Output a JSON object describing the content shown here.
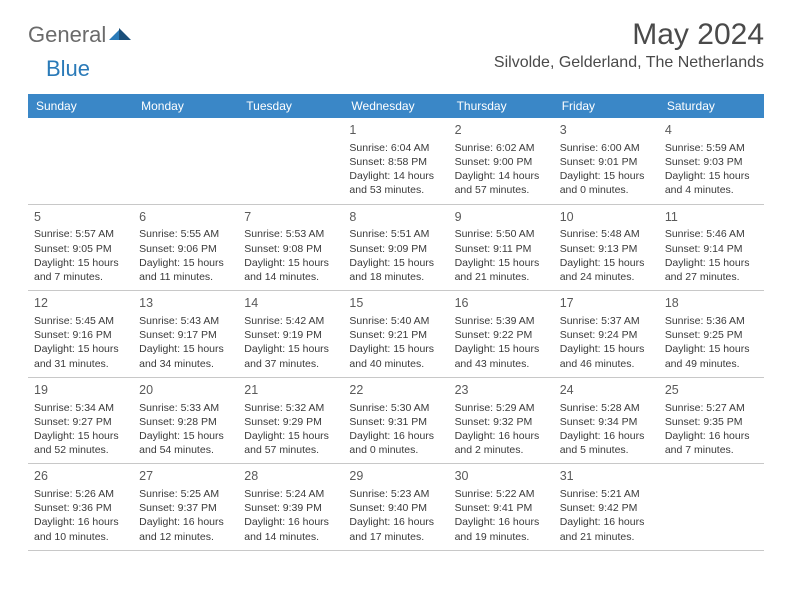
{
  "brand": {
    "part1": "General",
    "part2": "Blue"
  },
  "title": "May 2024",
  "location": "Silvolde, Gelderland, The Netherlands",
  "colors": {
    "header_bg": "#3a87c7",
    "header_text": "#ffffff",
    "logo_gray": "#6b6b6b",
    "logo_blue": "#2a7ab8",
    "title_text": "#4a4a4a",
    "cell_text": "#3a3a3a",
    "border": "#c8c8c8"
  },
  "day_names": [
    "Sunday",
    "Monday",
    "Tuesday",
    "Wednesday",
    "Thursday",
    "Friday",
    "Saturday"
  ],
  "weeks": [
    [
      null,
      null,
      null,
      {
        "n": "1",
        "sr": "Sunrise: 6:04 AM",
        "ss": "Sunset: 8:58 PM",
        "d1": "Daylight: 14 hours",
        "d2": "and 53 minutes."
      },
      {
        "n": "2",
        "sr": "Sunrise: 6:02 AM",
        "ss": "Sunset: 9:00 PM",
        "d1": "Daylight: 14 hours",
        "d2": "and 57 minutes."
      },
      {
        "n": "3",
        "sr": "Sunrise: 6:00 AM",
        "ss": "Sunset: 9:01 PM",
        "d1": "Daylight: 15 hours",
        "d2": "and 0 minutes."
      },
      {
        "n": "4",
        "sr": "Sunrise: 5:59 AM",
        "ss": "Sunset: 9:03 PM",
        "d1": "Daylight: 15 hours",
        "d2": "and 4 minutes."
      }
    ],
    [
      {
        "n": "5",
        "sr": "Sunrise: 5:57 AM",
        "ss": "Sunset: 9:05 PM",
        "d1": "Daylight: 15 hours",
        "d2": "and 7 minutes."
      },
      {
        "n": "6",
        "sr": "Sunrise: 5:55 AM",
        "ss": "Sunset: 9:06 PM",
        "d1": "Daylight: 15 hours",
        "d2": "and 11 minutes."
      },
      {
        "n": "7",
        "sr": "Sunrise: 5:53 AM",
        "ss": "Sunset: 9:08 PM",
        "d1": "Daylight: 15 hours",
        "d2": "and 14 minutes."
      },
      {
        "n": "8",
        "sr": "Sunrise: 5:51 AM",
        "ss": "Sunset: 9:09 PM",
        "d1": "Daylight: 15 hours",
        "d2": "and 18 minutes."
      },
      {
        "n": "9",
        "sr": "Sunrise: 5:50 AM",
        "ss": "Sunset: 9:11 PM",
        "d1": "Daylight: 15 hours",
        "d2": "and 21 minutes."
      },
      {
        "n": "10",
        "sr": "Sunrise: 5:48 AM",
        "ss": "Sunset: 9:13 PM",
        "d1": "Daylight: 15 hours",
        "d2": "and 24 minutes."
      },
      {
        "n": "11",
        "sr": "Sunrise: 5:46 AM",
        "ss": "Sunset: 9:14 PM",
        "d1": "Daylight: 15 hours",
        "d2": "and 27 minutes."
      }
    ],
    [
      {
        "n": "12",
        "sr": "Sunrise: 5:45 AM",
        "ss": "Sunset: 9:16 PM",
        "d1": "Daylight: 15 hours",
        "d2": "and 31 minutes."
      },
      {
        "n": "13",
        "sr": "Sunrise: 5:43 AM",
        "ss": "Sunset: 9:17 PM",
        "d1": "Daylight: 15 hours",
        "d2": "and 34 minutes."
      },
      {
        "n": "14",
        "sr": "Sunrise: 5:42 AM",
        "ss": "Sunset: 9:19 PM",
        "d1": "Daylight: 15 hours",
        "d2": "and 37 minutes."
      },
      {
        "n": "15",
        "sr": "Sunrise: 5:40 AM",
        "ss": "Sunset: 9:21 PM",
        "d1": "Daylight: 15 hours",
        "d2": "and 40 minutes."
      },
      {
        "n": "16",
        "sr": "Sunrise: 5:39 AM",
        "ss": "Sunset: 9:22 PM",
        "d1": "Daylight: 15 hours",
        "d2": "and 43 minutes."
      },
      {
        "n": "17",
        "sr": "Sunrise: 5:37 AM",
        "ss": "Sunset: 9:24 PM",
        "d1": "Daylight: 15 hours",
        "d2": "and 46 minutes."
      },
      {
        "n": "18",
        "sr": "Sunrise: 5:36 AM",
        "ss": "Sunset: 9:25 PM",
        "d1": "Daylight: 15 hours",
        "d2": "and 49 minutes."
      }
    ],
    [
      {
        "n": "19",
        "sr": "Sunrise: 5:34 AM",
        "ss": "Sunset: 9:27 PM",
        "d1": "Daylight: 15 hours",
        "d2": "and 52 minutes."
      },
      {
        "n": "20",
        "sr": "Sunrise: 5:33 AM",
        "ss": "Sunset: 9:28 PM",
        "d1": "Daylight: 15 hours",
        "d2": "and 54 minutes."
      },
      {
        "n": "21",
        "sr": "Sunrise: 5:32 AM",
        "ss": "Sunset: 9:29 PM",
        "d1": "Daylight: 15 hours",
        "d2": "and 57 minutes."
      },
      {
        "n": "22",
        "sr": "Sunrise: 5:30 AM",
        "ss": "Sunset: 9:31 PM",
        "d1": "Daylight: 16 hours",
        "d2": "and 0 minutes."
      },
      {
        "n": "23",
        "sr": "Sunrise: 5:29 AM",
        "ss": "Sunset: 9:32 PM",
        "d1": "Daylight: 16 hours",
        "d2": "and 2 minutes."
      },
      {
        "n": "24",
        "sr": "Sunrise: 5:28 AM",
        "ss": "Sunset: 9:34 PM",
        "d1": "Daylight: 16 hours",
        "d2": "and 5 minutes."
      },
      {
        "n": "25",
        "sr": "Sunrise: 5:27 AM",
        "ss": "Sunset: 9:35 PM",
        "d1": "Daylight: 16 hours",
        "d2": "and 7 minutes."
      }
    ],
    [
      {
        "n": "26",
        "sr": "Sunrise: 5:26 AM",
        "ss": "Sunset: 9:36 PM",
        "d1": "Daylight: 16 hours",
        "d2": "and 10 minutes."
      },
      {
        "n": "27",
        "sr": "Sunrise: 5:25 AM",
        "ss": "Sunset: 9:37 PM",
        "d1": "Daylight: 16 hours",
        "d2": "and 12 minutes."
      },
      {
        "n": "28",
        "sr": "Sunrise: 5:24 AM",
        "ss": "Sunset: 9:39 PM",
        "d1": "Daylight: 16 hours",
        "d2": "and 14 minutes."
      },
      {
        "n": "29",
        "sr": "Sunrise: 5:23 AM",
        "ss": "Sunset: 9:40 PM",
        "d1": "Daylight: 16 hours",
        "d2": "and 17 minutes."
      },
      {
        "n": "30",
        "sr": "Sunrise: 5:22 AM",
        "ss": "Sunset: 9:41 PM",
        "d1": "Daylight: 16 hours",
        "d2": "and 19 minutes."
      },
      {
        "n": "31",
        "sr": "Sunrise: 5:21 AM",
        "ss": "Sunset: 9:42 PM",
        "d1": "Daylight: 16 hours",
        "d2": "and 21 minutes."
      },
      null
    ]
  ]
}
